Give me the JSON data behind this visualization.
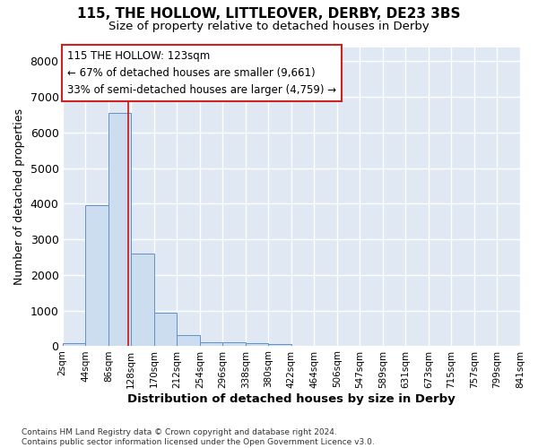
{
  "title1": "115, THE HOLLOW, LITTLEOVER, DERBY, DE23 3BS",
  "title2": "Size of property relative to detached houses in Derby",
  "xlabel": "Distribution of detached houses by size in Derby",
  "ylabel": "Number of detached properties",
  "bin_labels": [
    "2sqm",
    "44sqm",
    "86sqm",
    "128sqm",
    "170sqm",
    "212sqm",
    "254sqm",
    "296sqm",
    "338sqm",
    "380sqm",
    "422sqm",
    "464sqm",
    "506sqm",
    "547sqm",
    "589sqm",
    "631sqm",
    "673sqm",
    "715sqm",
    "757sqm",
    "799sqm",
    "841sqm"
  ],
  "bar_values": [
    75,
    3950,
    6550,
    2600,
    950,
    320,
    115,
    110,
    75,
    50,
    0,
    0,
    0,
    0,
    0,
    0,
    0,
    0,
    0,
    0
  ],
  "bar_color": "#cdddf0",
  "bar_edge_color": "#6090c8",
  "vline_color": "#cc2222",
  "annotation_line1": "115 THE HOLLOW: 123sqm",
  "annotation_line2": "← 67% of detached houses are smaller (9,661)",
  "annotation_line3": "33% of semi-detached houses are larger (4,759) →",
  "annotation_box_edge": "#cc2222",
  "ylim": [
    0,
    8400
  ],
  "yticks": [
    0,
    1000,
    2000,
    3000,
    4000,
    5000,
    6000,
    7000,
    8000
  ],
  "plot_bg": "#e0e8f4",
  "fig_bg": "#ffffff",
  "grid_color": "#ffffff",
  "footer": "Contains HM Land Registry data © Crown copyright and database right 2024.\nContains public sector information licensed under the Open Government Licence v3.0."
}
